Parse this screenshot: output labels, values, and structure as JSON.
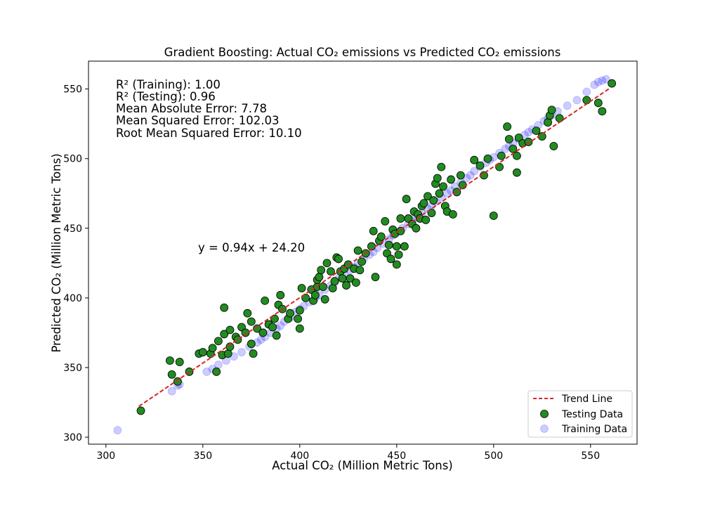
{
  "chart_data": {
    "type": "scatter",
    "title": "Gradient Boosting: Actual CO₂ emissions vs Predicted CO₂ emissions",
    "xlabel": "Actual CO₂ (Million Metric Tons)",
    "ylabel": "Predicted CO₂ (Million Metric Tons)",
    "xlim": [
      291,
      574
    ],
    "ylim": [
      295,
      570
    ],
    "xticks": [
      300,
      350,
      400,
      450,
      500,
      550
    ],
    "yticks": [
      300,
      350,
      400,
      450,
      500,
      550
    ],
    "grid": false,
    "legend_position": "bottom-right",
    "stats": [
      "R² (Training): 1.00",
      "R² (Testing): 0.96",
      "Mean Absolute Error: 7.78",
      "Mean Squared Error: 102.03",
      "Root Mean Squared Error: 10.10"
    ],
    "equation": "y = 0.94x + 24.20",
    "trend": {
      "name": "Trend Line",
      "slope": 0.94,
      "intercept": 24.2,
      "x_range": [
        317,
        560
      ],
      "color": "#d62728"
    },
    "series": [
      {
        "name": "Training Data",
        "color": "#0000ff",
        "opacity": 0.2,
        "points": [
          [
            306,
            305
          ],
          [
            334,
            333
          ],
          [
            337,
            337
          ],
          [
            338,
            338
          ],
          [
            352,
            347
          ],
          [
            355,
            349
          ],
          [
            358,
            352
          ],
          [
            362,
            355
          ],
          [
            366,
            358
          ],
          [
            370,
            361
          ],
          [
            374,
            365
          ],
          [
            378,
            368
          ],
          [
            380,
            370
          ],
          [
            382,
            372
          ],
          [
            385,
            375
          ],
          [
            388,
            378
          ],
          [
            390,
            380
          ],
          [
            392,
            383
          ],
          [
            395,
            386
          ],
          [
            398,
            390
          ],
          [
            400,
            392
          ],
          [
            402,
            394
          ],
          [
            405,
            397
          ],
          [
            408,
            400
          ],
          [
            410,
            402
          ],
          [
            413,
            406
          ],
          [
            416,
            409
          ],
          [
            418,
            411
          ],
          [
            420,
            414
          ],
          [
            423,
            417
          ],
          [
            426,
            420
          ],
          [
            428,
            422
          ],
          [
            430,
            425
          ],
          [
            433,
            428
          ],
          [
            436,
            431
          ],
          [
            438,
            433
          ],
          [
            440,
            436
          ],
          [
            443,
            439
          ],
          [
            446,
            442
          ],
          [
            448,
            445
          ],
          [
            450,
            447
          ],
          [
            453,
            450
          ],
          [
            456,
            453
          ],
          [
            458,
            455
          ],
          [
            460,
            458
          ],
          [
            463,
            461
          ],
          [
            466,
            464
          ],
          [
            468,
            466
          ],
          [
            470,
            469
          ],
          [
            473,
            472
          ],
          [
            476,
            475
          ],
          [
            478,
            477
          ],
          [
            480,
            480
          ],
          [
            483,
            483
          ],
          [
            486,
            486
          ],
          [
            488,
            488
          ],
          [
            490,
            491
          ],
          [
            493,
            494
          ],
          [
            496,
            497
          ],
          [
            498,
            499
          ],
          [
            500,
            501
          ],
          [
            503,
            504
          ],
          [
            506,
            507
          ],
          [
            508,
            509
          ],
          [
            510,
            511
          ],
          [
            513,
            514
          ],
          [
            516,
            517
          ],
          [
            518,
            519
          ],
          [
            520,
            521
          ],
          [
            523,
            524
          ],
          [
            526,
            527
          ],
          [
            528,
            529
          ],
          [
            530,
            531
          ],
          [
            533,
            534
          ],
          [
            538,
            538
          ],
          [
            543,
            542
          ],
          [
            548,
            548
          ],
          [
            552,
            553
          ],
          [
            554,
            555
          ],
          [
            556,
            556
          ],
          [
            558,
            557
          ]
        ]
      },
      {
        "name": "Testing Data",
        "color": "#228b22",
        "opacity": 1,
        "points": [
          [
            318,
            319
          ],
          [
            333,
            355
          ],
          [
            334,
            345
          ],
          [
            337,
            340
          ],
          [
            338,
            354
          ],
          [
            343,
            347
          ],
          [
            348,
            360
          ],
          [
            350,
            361
          ],
          [
            354,
            360
          ],
          [
            355,
            364
          ],
          [
            357,
            347
          ],
          [
            358,
            369
          ],
          [
            360,
            359
          ],
          [
            361,
            374
          ],
          [
            361,
            393
          ],
          [
            363,
            360
          ],
          [
            364,
            365
          ],
          [
            364,
            377
          ],
          [
            367,
            372
          ],
          [
            368,
            370
          ],
          [
            370,
            379
          ],
          [
            372,
            375
          ],
          [
            373,
            389
          ],
          [
            375,
            367
          ],
          [
            375,
            383
          ],
          [
            376,
            360
          ],
          [
            378,
            378
          ],
          [
            381,
            375
          ],
          [
            382,
            398
          ],
          [
            384,
            381
          ],
          [
            386,
            379
          ],
          [
            387,
            385
          ],
          [
            388,
            373
          ],
          [
            389,
            395
          ],
          [
            390,
            402
          ],
          [
            391,
            392
          ],
          [
            394,
            385
          ],
          [
            395,
            389
          ],
          [
            399,
            385
          ],
          [
            400,
            378
          ],
          [
            400,
            391
          ],
          [
            401,
            407
          ],
          [
            403,
            400
          ],
          [
            406,
            406
          ],
          [
            407,
            398
          ],
          [
            408,
            402
          ],
          [
            409,
            408
          ],
          [
            409,
            413
          ],
          [
            410,
            415
          ],
          [
            411,
            420
          ],
          [
            412,
            408
          ],
          [
            413,
            399
          ],
          [
            414,
            425
          ],
          [
            416,
            419
          ],
          [
            417,
            407
          ],
          [
            418,
            412
          ],
          [
            419,
            429
          ],
          [
            420,
            428
          ],
          [
            421,
            419
          ],
          [
            422,
            414
          ],
          [
            423,
            421
          ],
          [
            424,
            409
          ],
          [
            425,
            424
          ],
          [
            426,
            414
          ],
          [
            428,
            421
          ],
          [
            429,
            411
          ],
          [
            430,
            434
          ],
          [
            431,
            420
          ],
          [
            432,
            426
          ],
          [
            434,
            432
          ],
          [
            437,
            437
          ],
          [
            438,
            448
          ],
          [
            439,
            415
          ],
          [
            441,
            441
          ],
          [
            442,
            444
          ],
          [
            444,
            455
          ],
          [
            445,
            432
          ],
          [
            446,
            438
          ],
          [
            447,
            428
          ],
          [
            448,
            449
          ],
          [
            449,
            446
          ],
          [
            450,
            424
          ],
          [
            450,
            437
          ],
          [
            451,
            431
          ],
          [
            452,
            448
          ],
          [
            452,
            457
          ],
          [
            454,
            437
          ],
          [
            455,
            471
          ],
          [
            456,
            457
          ],
          [
            458,
            453
          ],
          [
            459,
            462
          ],
          [
            460,
            450
          ],
          [
            461,
            460
          ],
          [
            462,
            457
          ],
          [
            463,
            466
          ],
          [
            464,
            468
          ],
          [
            465,
            456
          ],
          [
            466,
            473
          ],
          [
            468,
            461
          ],
          [
            469,
            470
          ],
          [
            470,
            482
          ],
          [
            471,
            486
          ],
          [
            472,
            475
          ],
          [
            473,
            494
          ],
          [
            474,
            480
          ],
          [
            475,
            466
          ],
          [
            476,
            462
          ],
          [
            478,
            485
          ],
          [
            479,
            460
          ],
          [
            481,
            476
          ],
          [
            483,
            488
          ],
          [
            484,
            481
          ],
          [
            490,
            499
          ],
          [
            493,
            495
          ],
          [
            495,
            488
          ],
          [
            497,
            500
          ],
          [
            500,
            459
          ],
          [
            503,
            494
          ],
          [
            504,
            502
          ],
          [
            507,
            523
          ],
          [
            508,
            514
          ],
          [
            510,
            507
          ],
          [
            512,
            502
          ],
          [
            512,
            490
          ],
          [
            513,
            515
          ],
          [
            515,
            511
          ],
          [
            518,
            512
          ],
          [
            522,
            520
          ],
          [
            525,
            516
          ],
          [
            528,
            526
          ],
          [
            529,
            531
          ],
          [
            530,
            535
          ],
          [
            531,
            509
          ],
          [
            534,
            529
          ],
          [
            548,
            542
          ],
          [
            554,
            540
          ],
          [
            556,
            534
          ],
          [
            561,
            554
          ]
        ]
      }
    ]
  }
}
